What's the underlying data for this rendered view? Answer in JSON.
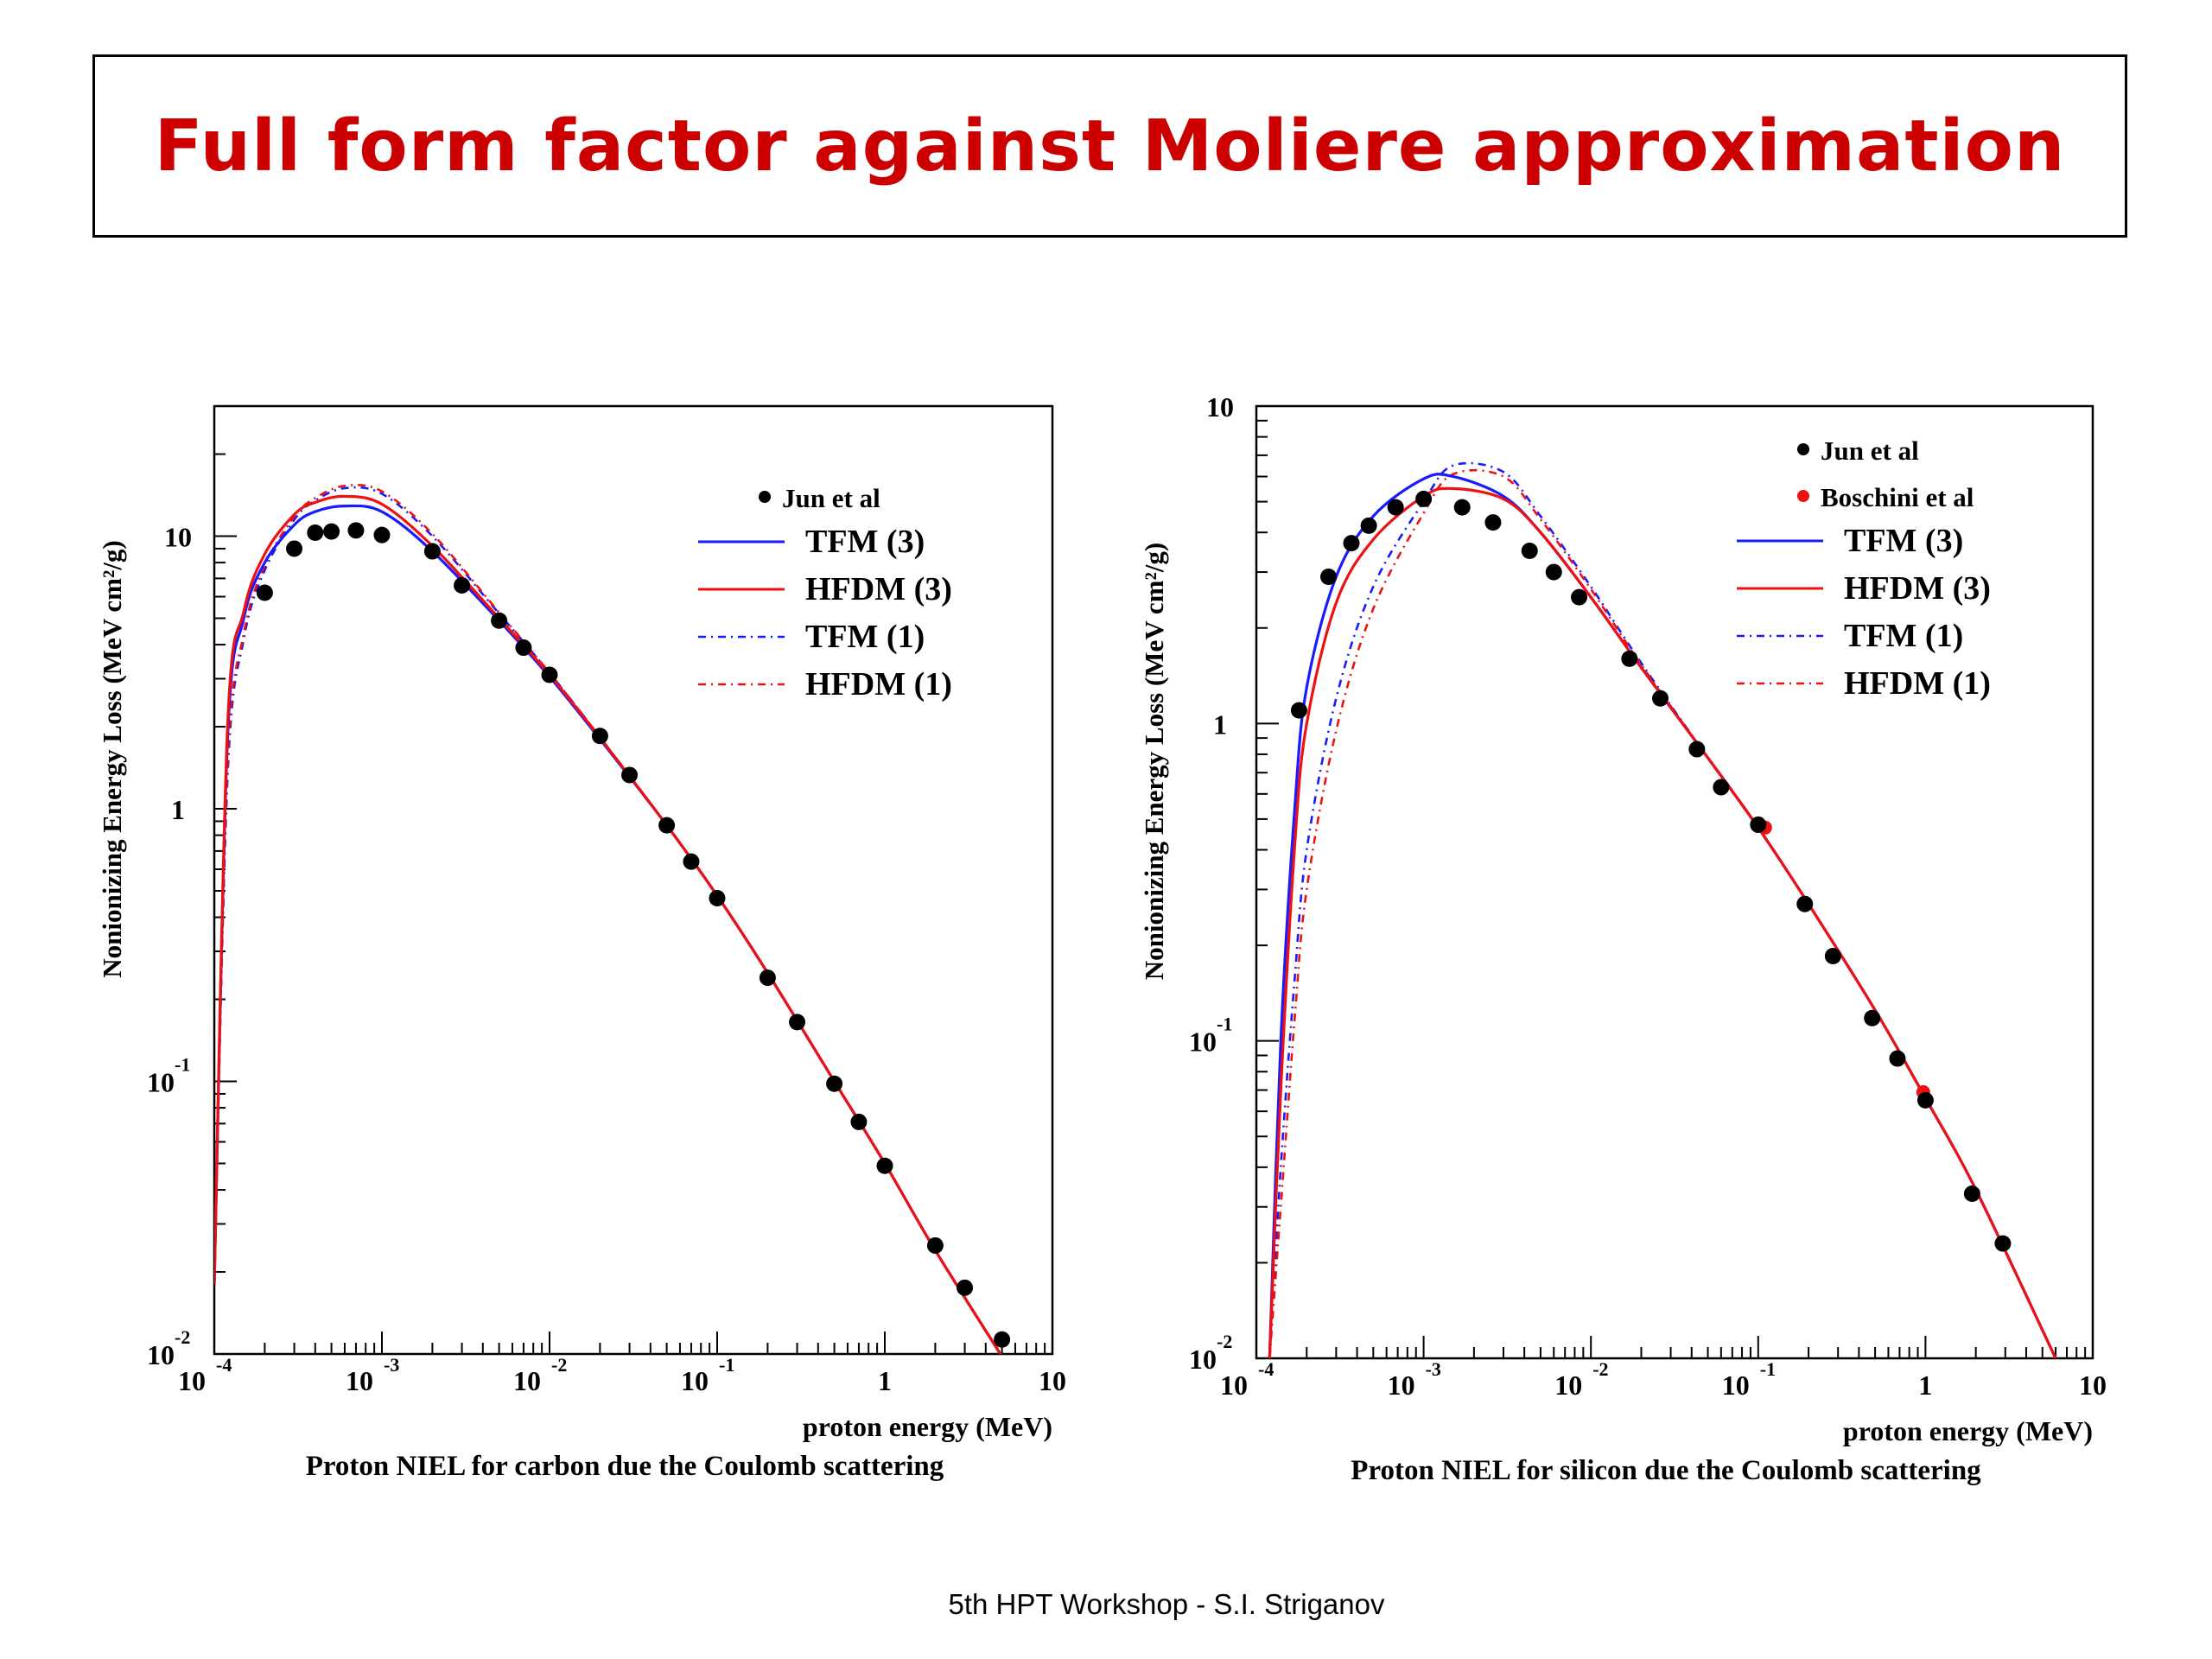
{
  "slide": {
    "title": "Full form factor against Moliere approximation",
    "footer": "5th HPT Workshop  -  S.I. Striganov"
  },
  "colors": {
    "title": "#cc0000",
    "tfm": "#1a1aff",
    "hfdm": "#ee1111",
    "points": "#000000",
    "boschini": "#ee1111"
  },
  "chart_data": [
    {
      "type": "line",
      "caption": "Proton NIEL for carbon due the Coulomb scattering",
      "xlabel": "proton energy (MeV)",
      "ylabel": "Nonionizing Energy Loss (MeV cm²/g)",
      "x_scale": "log",
      "y_scale": "log",
      "xlim": [
        0.0001,
        10
      ],
      "ylim": [
        0.01,
        30
      ],
      "x_ticks": [
        {
          "v": 0.0001,
          "base": "10",
          "exp": "-4"
        },
        {
          "v": 0.001,
          "base": "10",
          "exp": "-3"
        },
        {
          "v": 0.01,
          "base": "10",
          "exp": "-2"
        },
        {
          "v": 0.1,
          "base": "10",
          "exp": "-1"
        },
        {
          "v": 1,
          "base": "1",
          "exp": ""
        },
        {
          "v": 10,
          "base": "10",
          "exp": ""
        }
      ],
      "y_ticks": [
        {
          "v": 0.01,
          "base": "10",
          "exp": "-2"
        },
        {
          "v": 0.1,
          "base": "10",
          "exp": "-1"
        },
        {
          "v": 1,
          "base": "1",
          "exp": ""
        },
        {
          "v": 10,
          "base": "10",
          "exp": ""
        }
      ],
      "legend": [
        {
          "label": "Jun et al",
          "kind": "point",
          "color": "#000000"
        },
        {
          "label": "TFM (3)",
          "kind": "solid",
          "color": "#1a1aff"
        },
        {
          "label": "HFDM (3)",
          "kind": "solid",
          "color": "#ee1111"
        },
        {
          "label": "TFM (1)",
          "kind": "dashdot",
          "color": "#1a1aff"
        },
        {
          "label": "HFDM (1)",
          "kind": "dashdot",
          "color": "#ee1111"
        }
      ],
      "series": [
        {
          "name": "Jun et al",
          "kind": "points",
          "color": "#000000",
          "x": [
            0.0002,
            0.0003,
            0.0004,
            0.0005,
            0.0007,
            0.001,
            0.002,
            0.003,
            0.005,
            0.007,
            0.01,
            0.02,
            0.03,
            0.05,
            0.07,
            0.1,
            0.2,
            0.3,
            0.5,
            0.7,
            1,
            2,
            3,
            5
          ],
          "y": [
            6.2,
            9.0,
            10.3,
            10.4,
            10.5,
            10.1,
            8.8,
            6.6,
            4.9,
            3.9,
            3.1,
            1.85,
            1.33,
            0.87,
            0.64,
            0.47,
            0.24,
            0.165,
            0.098,
            0.071,
            0.049,
            0.025,
            0.0175,
            0.0113
          ]
        },
        {
          "name": "TFM (3)",
          "kind": "solid",
          "color": "#1a1aff",
          "x": [
            0.0001,
            0.00012,
            0.00015,
            0.0002,
            0.0003,
            0.0004,
            0.0006,
            0.001,
            0.002,
            0.005,
            0.01,
            0.02,
            0.05,
            0.1,
            0.2,
            0.5,
            1,
            2,
            5
          ],
          "y": [
            0.018,
            1.8,
            5.0,
            8.0,
            11.0,
            12.3,
            12.9,
            12.3,
            8.8,
            4.9,
            3.05,
            1.8,
            0.87,
            0.48,
            0.25,
            0.1,
            0.05,
            0.024,
            0.0098
          ]
        },
        {
          "name": "HFDM (3)",
          "kind": "solid",
          "color": "#ee1111",
          "x": [
            0.0001,
            0.00012,
            0.00015,
            0.0002,
            0.0003,
            0.0004,
            0.0006,
            0.001,
            0.002,
            0.005,
            0.01,
            0.02,
            0.05,
            0.1,
            0.2,
            0.5,
            1,
            2,
            5
          ],
          "y": [
            0.018,
            2.0,
            5.3,
            8.6,
            12.0,
            13.3,
            14.0,
            13.1,
            9.2,
            5.0,
            3.1,
            1.82,
            0.87,
            0.48,
            0.25,
            0.1,
            0.05,
            0.024,
            0.0098
          ]
        },
        {
          "name": "TFM (1)",
          "kind": "dashdot",
          "color": "#1a1aff",
          "x": [
            0.0001,
            0.00012,
            0.00015,
            0.0002,
            0.0003,
            0.0004,
            0.0006,
            0.001,
            0.002,
            0.005,
            0.01,
            0.02,
            0.05,
            0.1
          ],
          "y": [
            0.018,
            1.3,
            4.2,
            7.5,
            11.5,
            13.5,
            15.0,
            14.3,
            10.0,
            5.2,
            3.15,
            1.83,
            0.87,
            0.48
          ]
        },
        {
          "name": "HFDM (1)",
          "kind": "dashdot",
          "color": "#ee1111",
          "x": [
            0.0001,
            0.00012,
            0.00015,
            0.0002,
            0.0003,
            0.0004,
            0.0006,
            0.001,
            0.002,
            0.005,
            0.01,
            0.02,
            0.05,
            0.1
          ],
          "y": [
            0.018,
            1.4,
            4.4,
            7.8,
            11.8,
            13.8,
            15.3,
            14.6,
            10.2,
            5.25,
            3.15,
            1.83,
            0.87,
            0.48
          ]
        }
      ]
    },
    {
      "type": "line",
      "caption": "Proton NIEL for silicon due the Coulomb scattering",
      "xlabel": "proton energy (MeV)",
      "ylabel": "Nonionizing Energy Loss (MeV cm²/g)",
      "x_scale": "log",
      "y_scale": "log",
      "xlim": [
        0.0001,
        10
      ],
      "ylim": [
        0.01,
        10
      ],
      "x_ticks": [
        {
          "v": 0.0001,
          "base": "10",
          "exp": "-4"
        },
        {
          "v": 0.001,
          "base": "10",
          "exp": "-3"
        },
        {
          "v": 0.01,
          "base": "10",
          "exp": "-2"
        },
        {
          "v": 0.1,
          "base": "10",
          "exp": "-1"
        },
        {
          "v": 1,
          "base": "1",
          "exp": ""
        },
        {
          "v": 10,
          "base": "10",
          "exp": ""
        }
      ],
      "y_ticks": [
        {
          "v": 0.01,
          "base": "10",
          "exp": "-2"
        },
        {
          "v": 0.1,
          "base": "10",
          "exp": "-1"
        },
        {
          "v": 1,
          "base": "1",
          "exp": ""
        },
        {
          "v": 10,
          "base": "10",
          "exp": ""
        }
      ],
      "legend": [
        {
          "label": "Jun et al",
          "kind": "point",
          "color": "#000000"
        },
        {
          "label": "Boschini et al",
          "kind": "point",
          "color": "#ee1111"
        },
        {
          "label": "TFM (3)",
          "kind": "solid",
          "color": "#1a1aff"
        },
        {
          "label": "HFDM (3)",
          "kind": "solid",
          "color": "#ee1111"
        },
        {
          "label": "TFM (1)",
          "kind": "dashdot",
          "color": "#1a1aff"
        },
        {
          "label": "HFDM (1)",
          "kind": "dashdot",
          "color": "#ee1111"
        }
      ],
      "series": [
        {
          "name": "Boschini et al",
          "kind": "points",
          "color": "#ee1111",
          "x": [
            0.11,
            0.97
          ],
          "y": [
            0.47,
            0.069
          ]
        },
        {
          "name": "Jun et al",
          "kind": "points",
          "color": "#000000",
          "x": [
            0.00018,
            0.00027,
            0.00037,
            0.00047,
            0.00068,
            0.001,
            0.0017,
            0.0026,
            0.0043,
            0.006,
            0.0085,
            0.017,
            0.026,
            0.043,
            0.06,
            0.1,
            0.19,
            0.28,
            0.48,
            0.68,
            1.0,
            1.9,
            2.9
          ],
          "y": [
            1.1,
            2.9,
            3.7,
            4.2,
            4.8,
            5.1,
            4.8,
            4.3,
            3.5,
            3.0,
            2.5,
            1.6,
            1.2,
            0.83,
            0.63,
            0.48,
            0.27,
            0.185,
            0.118,
            0.088,
            0.065,
            0.033,
            0.023
          ]
        },
        {
          "name": "TFM (3)",
          "kind": "solid",
          "color": "#1a1aff",
          "x": [
            0.00012,
            0.00014,
            0.00017,
            0.0002,
            0.0003,
            0.0005,
            0.001,
            0.0015,
            0.003,
            0.005,
            0.01,
            0.02,
            0.05,
            0.1,
            0.2,
            0.5,
            1,
            2,
            6
          ],
          "y": [
            0.01,
            0.1,
            0.55,
            1.3,
            2.9,
            4.5,
            5.9,
            6.0,
            5.2,
            4.0,
            2.5,
            1.5,
            0.78,
            0.47,
            0.27,
            0.125,
            0.066,
            0.034,
            0.01
          ]
        },
        {
          "name": "HFDM (3)",
          "kind": "solid",
          "color": "#ee1111",
          "x": [
            0.00012,
            0.00014,
            0.00017,
            0.0002,
            0.0003,
            0.0005,
            0.001,
            0.0015,
            0.003,
            0.005,
            0.01,
            0.02,
            0.05,
            0.1,
            0.2,
            0.5,
            1,
            2,
            6
          ],
          "y": [
            0.01,
            0.07,
            0.42,
            1.0,
            2.4,
            3.8,
            5.2,
            5.5,
            5.1,
            4.0,
            2.5,
            1.5,
            0.78,
            0.47,
            0.27,
            0.125,
            0.066,
            0.034,
            0.01
          ]
        },
        {
          "name": "TFM (1)",
          "kind": "dashdot",
          "color": "#1a1aff",
          "x": [
            0.00012,
            0.00014,
            0.00017,
            0.0002,
            0.0003,
            0.0005,
            0.001,
            0.0015,
            0.003,
            0.005,
            0.01,
            0.02,
            0.05,
            0.1
          ],
          "y": [
            0.01,
            0.04,
            0.16,
            0.4,
            1.2,
            2.7,
            5.0,
            6.5,
            6.2,
            4.5,
            2.7,
            1.55,
            0.78,
            0.47
          ]
        },
        {
          "name": "HFDM (1)",
          "kind": "dashdot",
          "color": "#ee1111",
          "x": [
            0.00012,
            0.00014,
            0.00017,
            0.0002,
            0.0003,
            0.0005,
            0.001,
            0.0015,
            0.003,
            0.005,
            0.01,
            0.02,
            0.05,
            0.1
          ],
          "y": [
            0.01,
            0.03,
            0.12,
            0.3,
            0.95,
            2.3,
            4.6,
            6.1,
            6.0,
            4.4,
            2.65,
            1.53,
            0.78,
            0.47
          ]
        }
      ]
    }
  ]
}
